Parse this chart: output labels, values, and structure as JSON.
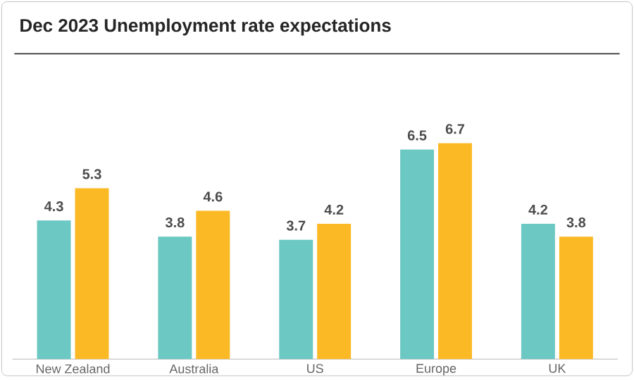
{
  "chart_data": {
    "type": "bar",
    "title": "Dec 2023 Unemployment rate expectations",
    "categories": [
      "New Zealand",
      "Australia",
      "US",
      "Europe",
      "UK"
    ],
    "series": [
      {
        "color": "#6cc8c3",
        "values": [
          4.3,
          3.8,
          3.7,
          6.5,
          4.2
        ]
      },
      {
        "color": "#fbb926",
        "values": [
          5.3,
          4.6,
          4.2,
          6.7,
          3.8
        ]
      }
    ],
    "data_labels": true
  }
}
